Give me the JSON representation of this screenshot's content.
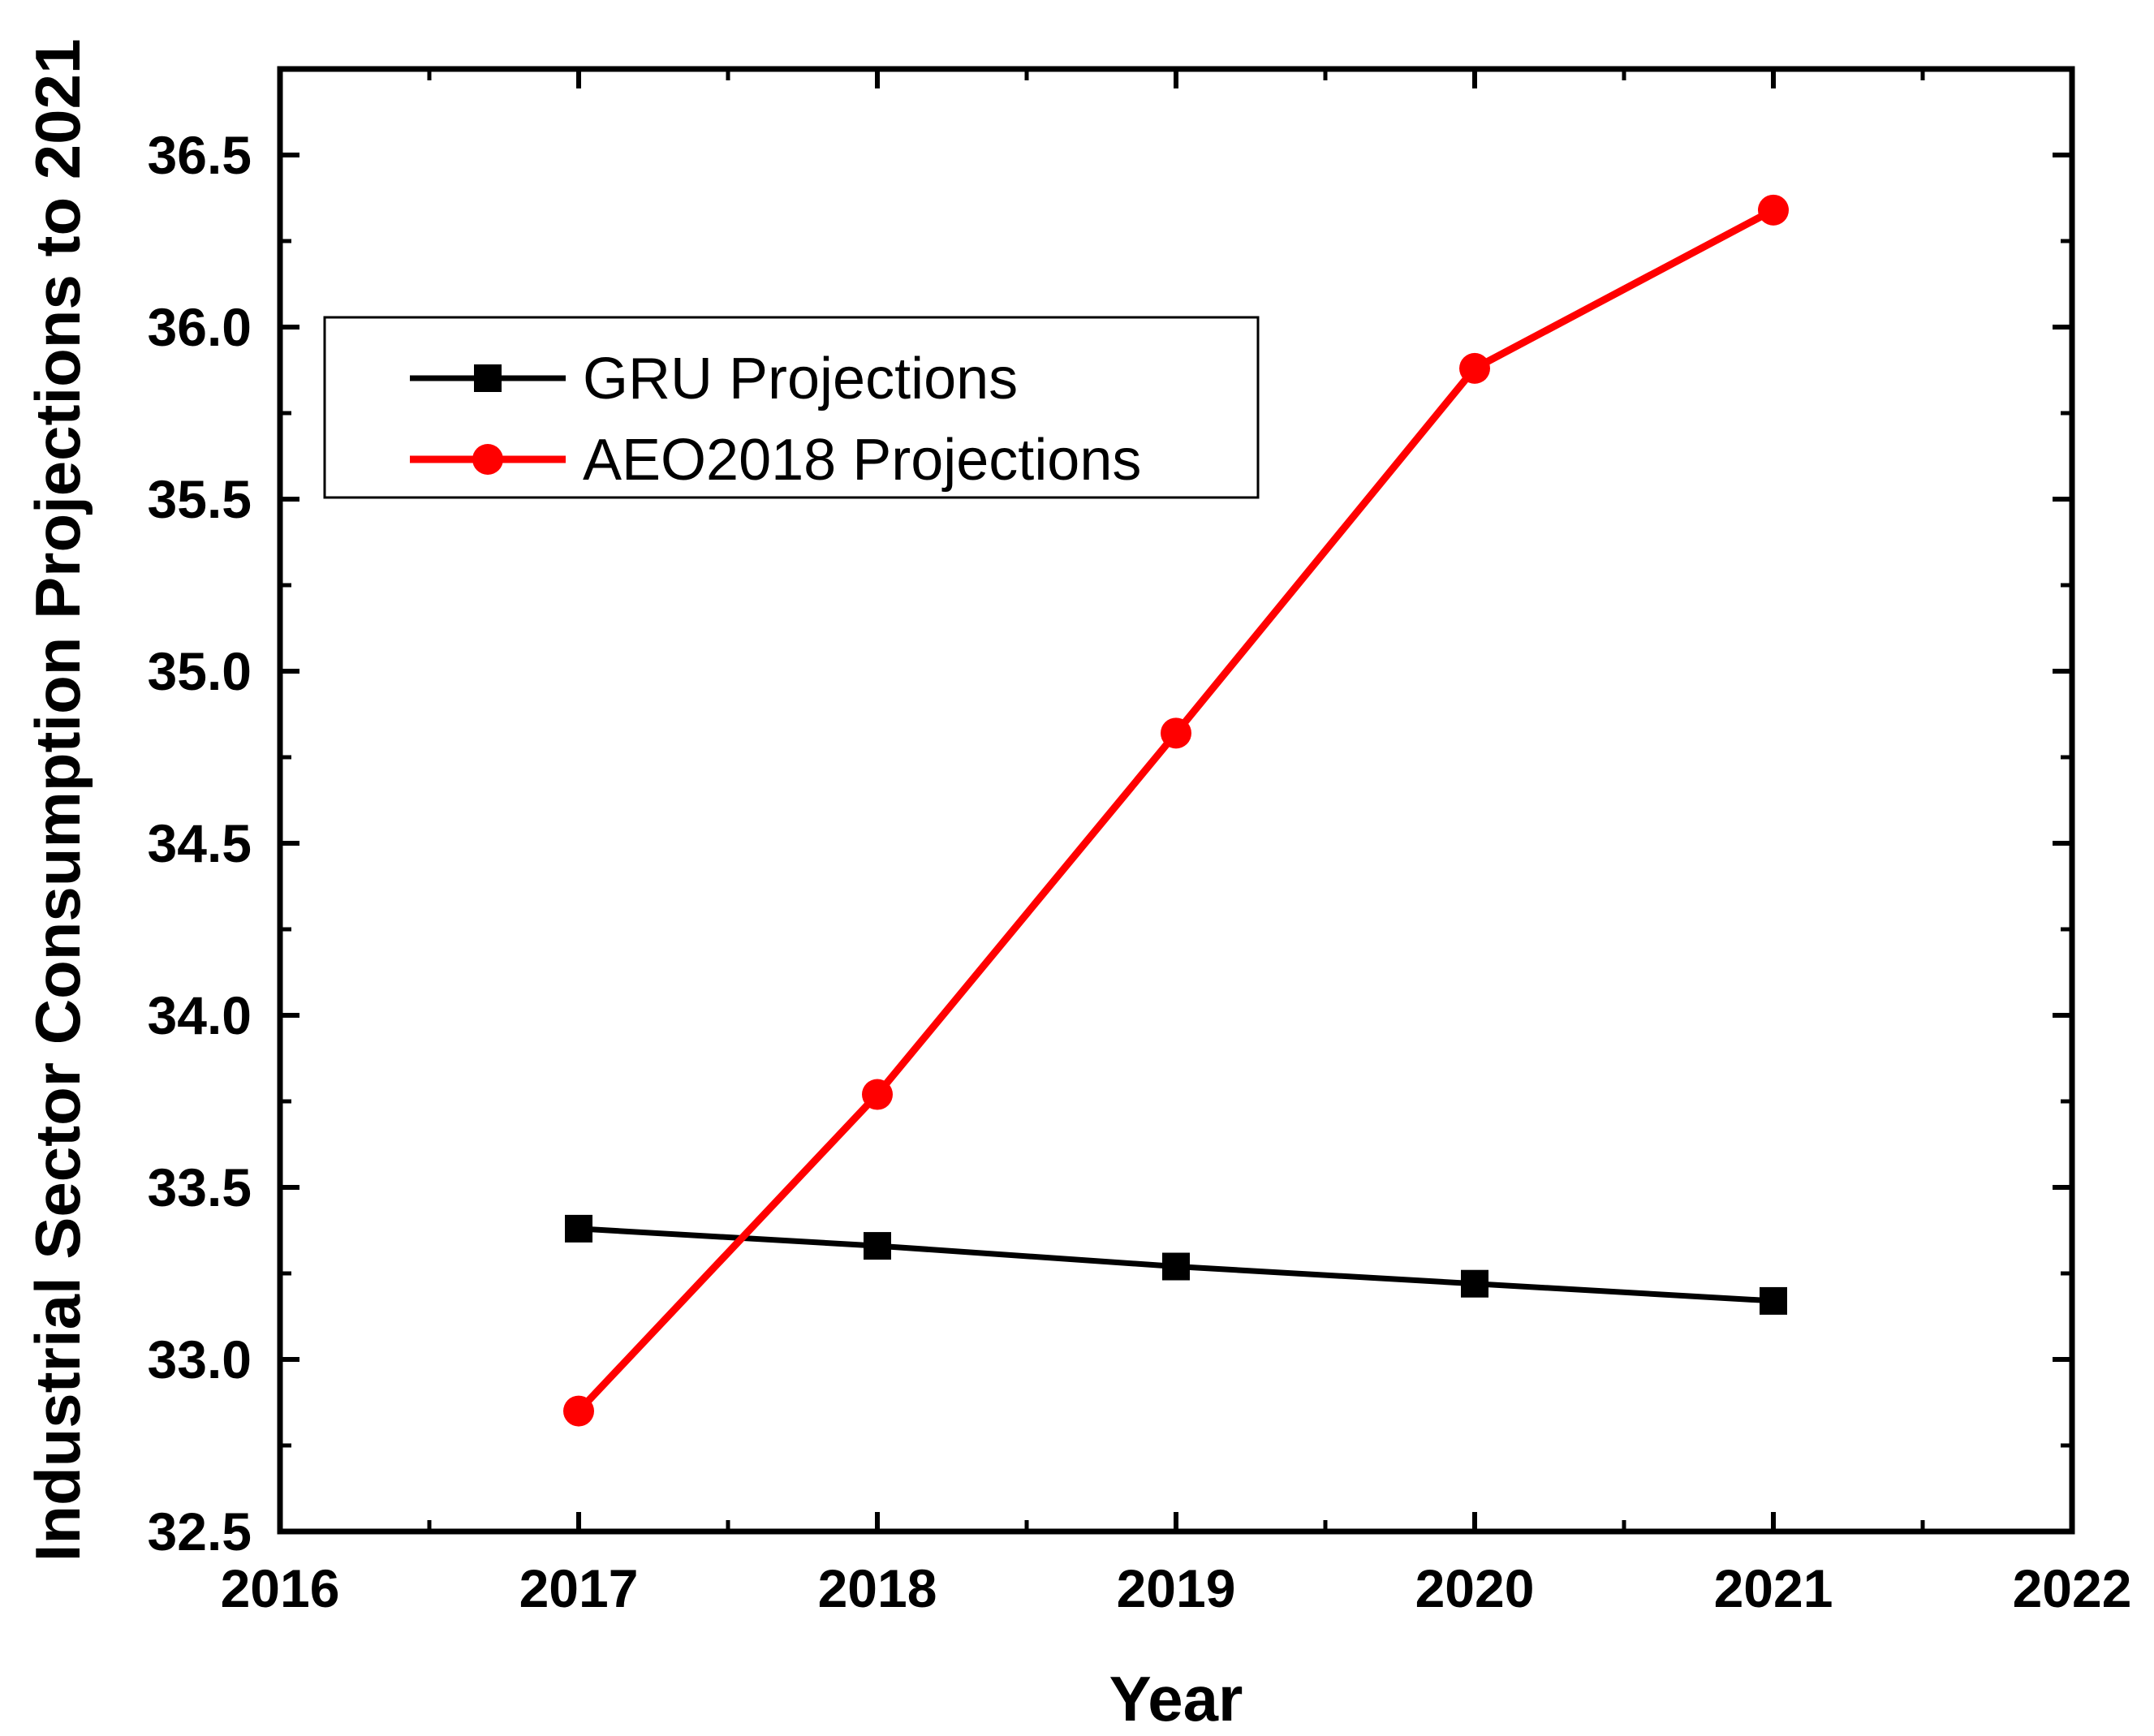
{
  "chart_data": {
    "type": "line",
    "xlabel": "Year",
    "ylabel": "Industrial Sector Consumption Projections to 2021",
    "xlim": [
      2016,
      2022
    ],
    "ylim": [
      32.5,
      36.75
    ],
    "xticks": [
      2016,
      2017,
      2018,
      2019,
      2020,
      2021,
      2022
    ],
    "xtick_labels": [
      "2016",
      "2017",
      "2018",
      "2019",
      "2020",
      "2021",
      "2022"
    ],
    "yticks": [
      32.5,
      33.0,
      33.5,
      34.0,
      34.5,
      35.0,
      35.5,
      36.0,
      36.5
    ],
    "ytick_labels": [
      "32.5",
      "33.0",
      "33.5",
      "34.0",
      "34.5",
      "35.0",
      "35.5",
      "36.0",
      "36.5"
    ],
    "grid": false,
    "legend_position": "upper-left",
    "series": [
      {
        "name": "GRU Projections",
        "color": "#000000",
        "marker": "square",
        "x": [
          2017,
          2018,
          2019,
          2020,
          2021
        ],
        "y": [
          33.38,
          33.33,
          33.27,
          33.22,
          33.17
        ]
      },
      {
        "name": "AEO2018 Projections",
        "color": "#ff0000",
        "marker": "circle",
        "x": [
          2017,
          2018,
          2019,
          2020,
          2021
        ],
        "y": [
          32.85,
          33.77,
          34.82,
          35.88,
          36.34
        ]
      }
    ]
  }
}
